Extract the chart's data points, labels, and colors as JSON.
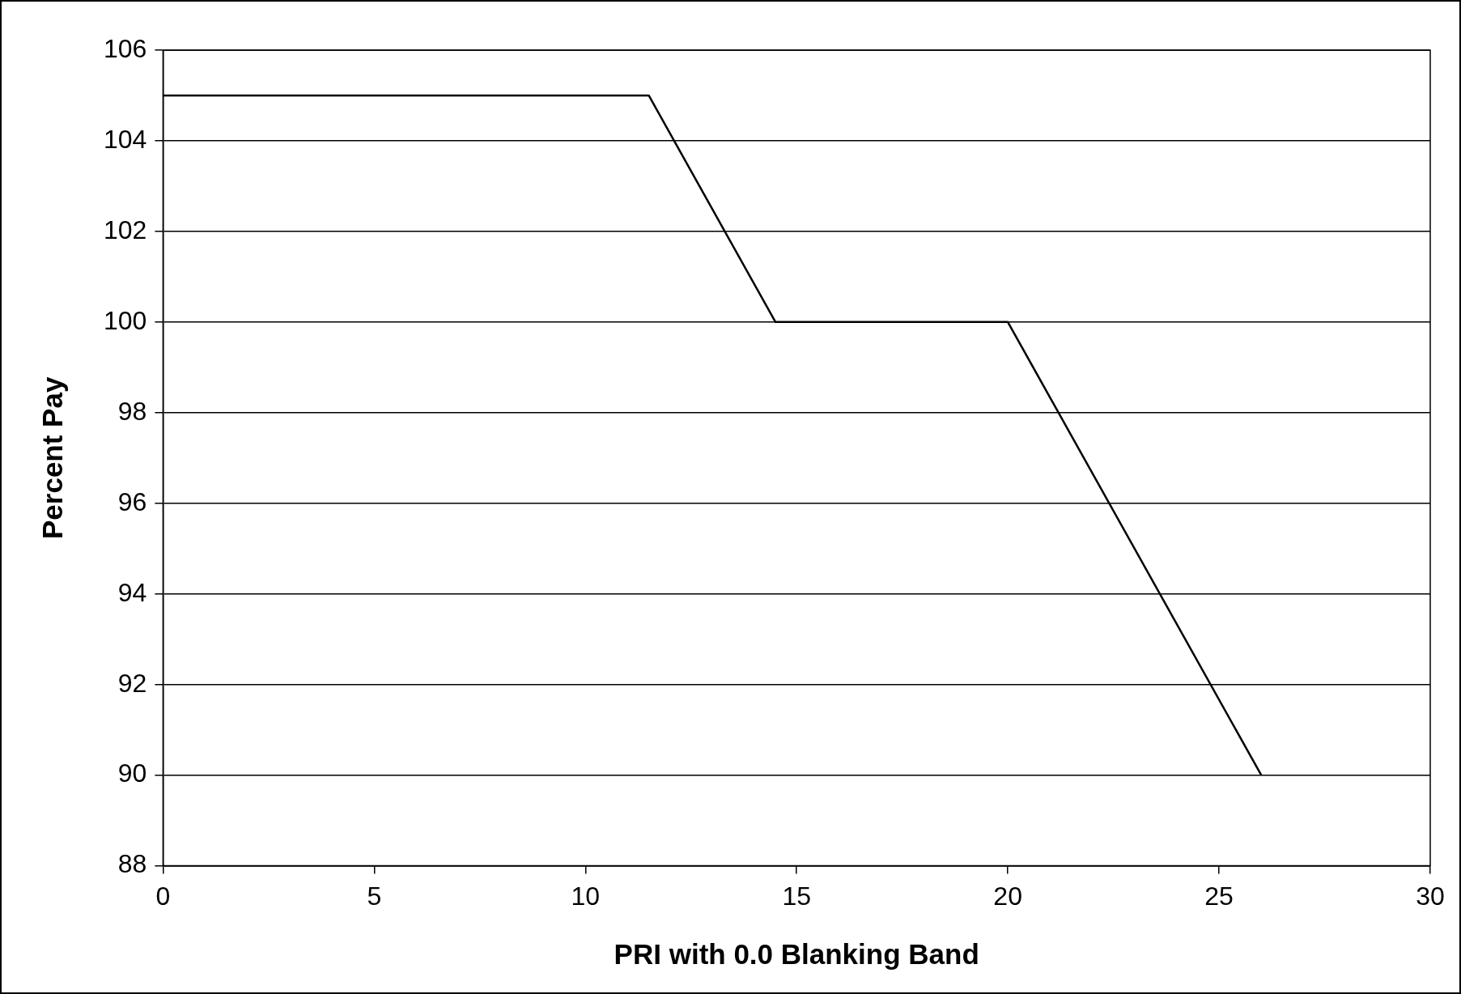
{
  "chart_data": {
    "type": "line",
    "xlabel": "PRI with 0.0 Blanking Band",
    "ylabel": "Percent Pay",
    "x": [
      0,
      11.5,
      14.5,
      20,
      26
    ],
    "series": [
      {
        "color": "#000000",
        "values": [
          105,
          105,
          100,
          100,
          90
        ]
      }
    ],
    "xlim": [
      0,
      30
    ],
    "xticks": [
      0,
      5,
      10,
      15,
      20,
      25,
      30
    ],
    "ylim": [
      88,
      106
    ],
    "yticks": [
      88,
      90,
      92,
      94,
      96,
      98,
      100,
      102,
      104,
      106
    ],
    "grid": "y",
    "legend": false,
    "marker": "none",
    "line_style": "solid"
  }
}
